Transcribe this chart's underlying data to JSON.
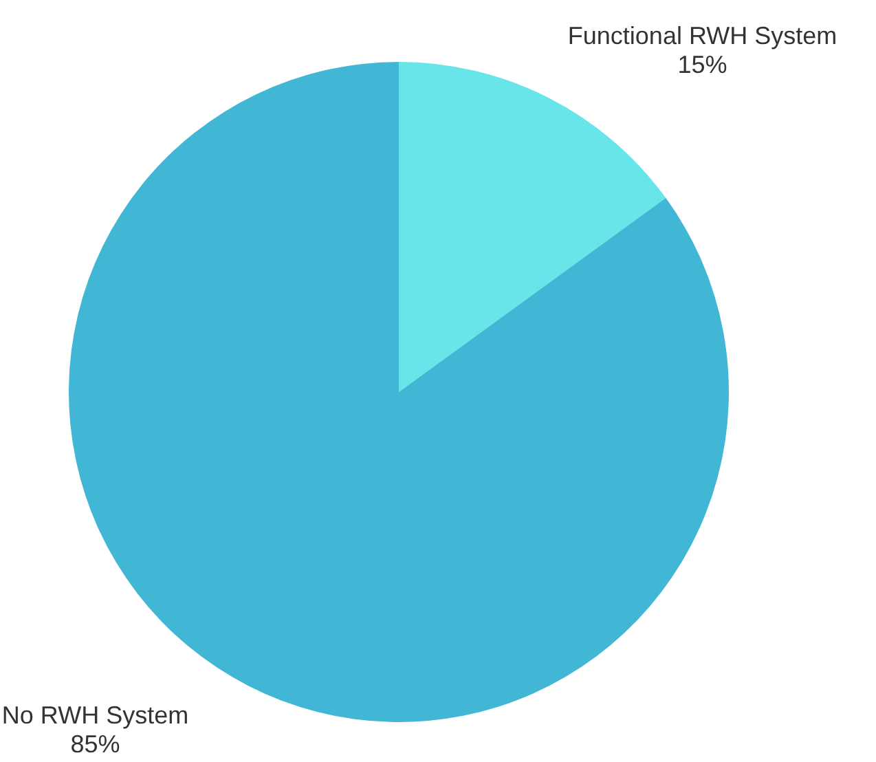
{
  "chart_data": {
    "type": "pie",
    "categories": [
      "Functional RWH System",
      "No RWH System"
    ],
    "values": [
      15,
      85
    ],
    "colors": [
      "#68e5e8",
      "#42b7d5"
    ],
    "value_labels": [
      "15%",
      "85%"
    ]
  }
}
